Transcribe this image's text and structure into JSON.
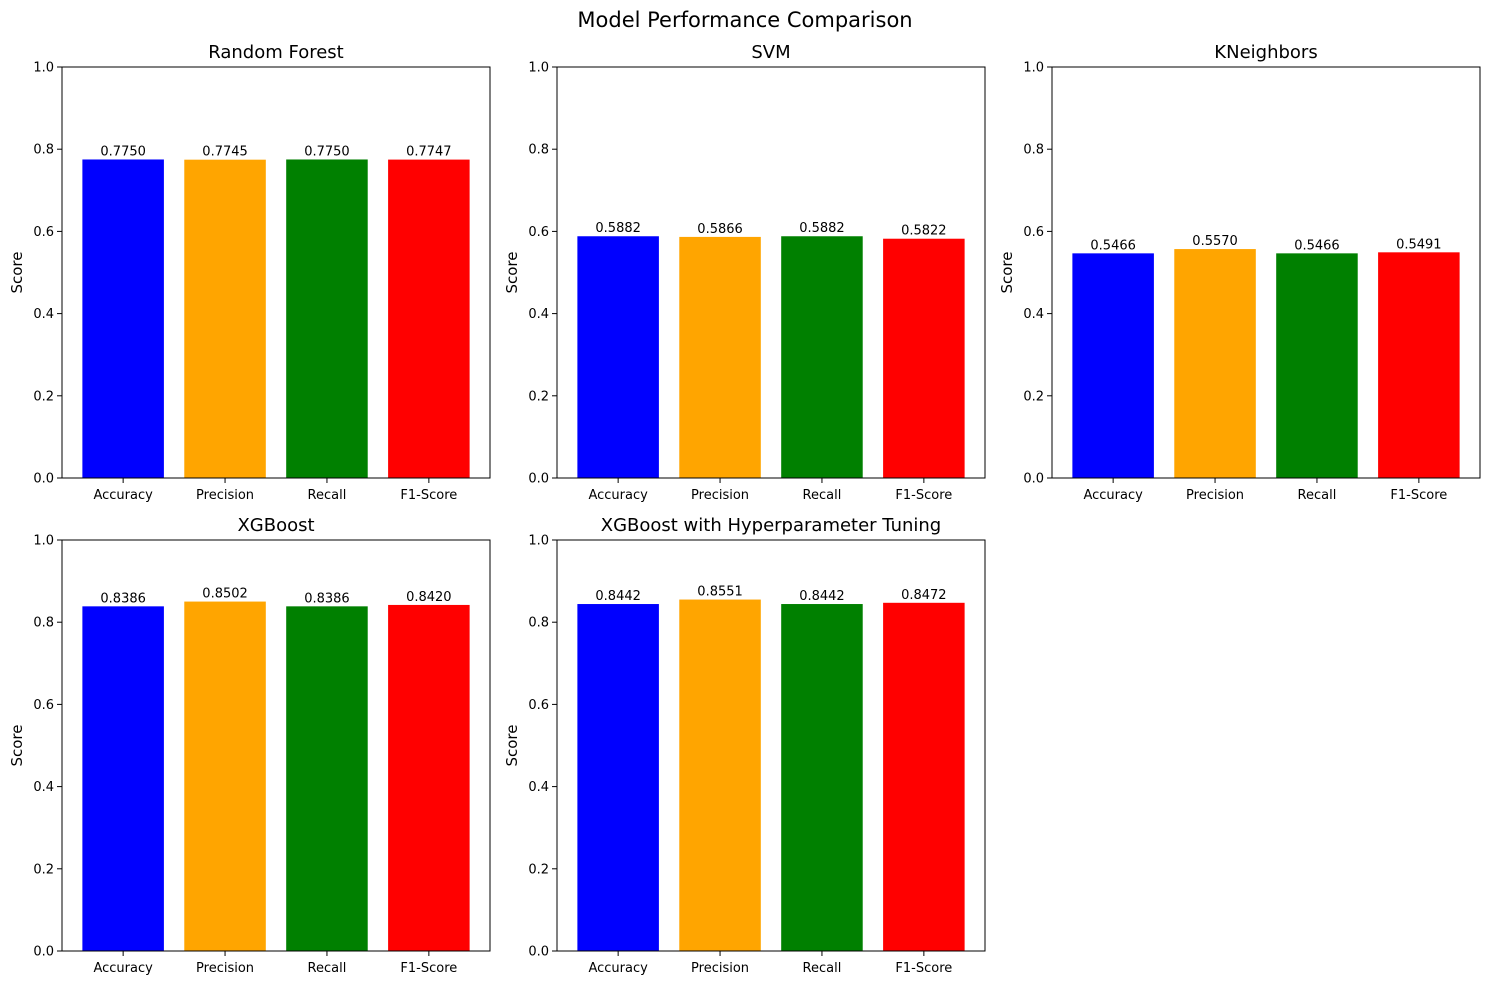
{
  "figure": {
    "title": "Model Performance Comparison"
  },
  "chart_data": [
    {
      "type": "bar",
      "title": "Random Forest",
      "xlabel": "",
      "ylabel": "Score",
      "ylim": [
        0,
        1
      ],
      "yticks": [
        "0.0",
        "0.2",
        "0.4",
        "0.6",
        "0.8",
        "1.0"
      ],
      "categories": [
        "Accuracy",
        "Precision",
        "Recall",
        "F1-Score"
      ],
      "values": [
        0.775,
        0.7745,
        0.775,
        0.7747
      ],
      "value_labels": [
        "0.7750",
        "0.7745",
        "0.7750",
        "0.7747"
      ],
      "colors": [
        "#0000ff",
        "#ffa500",
        "#008000",
        "#ff0000"
      ]
    },
    {
      "type": "bar",
      "title": "SVM",
      "xlabel": "",
      "ylabel": "Score",
      "ylim": [
        0,
        1
      ],
      "yticks": [
        "0.0",
        "0.2",
        "0.4",
        "0.6",
        "0.8",
        "1.0"
      ],
      "categories": [
        "Accuracy",
        "Precision",
        "Recall",
        "F1-Score"
      ],
      "values": [
        0.5882,
        0.5866,
        0.5882,
        0.5822
      ],
      "value_labels": [
        "0.5882",
        "0.5866",
        "0.5882",
        "0.5822"
      ],
      "colors": [
        "#0000ff",
        "#ffa500",
        "#008000",
        "#ff0000"
      ]
    },
    {
      "type": "bar",
      "title": "KNeighbors",
      "xlabel": "",
      "ylabel": "Score",
      "ylim": [
        0,
        1
      ],
      "yticks": [
        "0.0",
        "0.2",
        "0.4",
        "0.6",
        "0.8",
        "1.0"
      ],
      "categories": [
        "Accuracy",
        "Precision",
        "Recall",
        "F1-Score"
      ],
      "values": [
        0.5466,
        0.557,
        0.5466,
        0.5491
      ],
      "value_labels": [
        "0.5466",
        "0.5570",
        "0.5466",
        "0.5491"
      ],
      "colors": [
        "#0000ff",
        "#ffa500",
        "#008000",
        "#ff0000"
      ]
    },
    {
      "type": "bar",
      "title": "XGBoost",
      "xlabel": "",
      "ylabel": "Score",
      "ylim": [
        0,
        1
      ],
      "yticks": [
        "0.0",
        "0.2",
        "0.4",
        "0.6",
        "0.8",
        "1.0"
      ],
      "categories": [
        "Accuracy",
        "Precision",
        "Recall",
        "F1-Score"
      ],
      "values": [
        0.8386,
        0.8502,
        0.8386,
        0.842
      ],
      "value_labels": [
        "0.8386",
        "0.8502",
        "0.8386",
        "0.8420"
      ],
      "colors": [
        "#0000ff",
        "#ffa500",
        "#008000",
        "#ff0000"
      ]
    },
    {
      "type": "bar",
      "title": "XGBoost with Hyperparameter Tuning",
      "xlabel": "",
      "ylabel": "Score",
      "ylim": [
        0,
        1
      ],
      "yticks": [
        "0.0",
        "0.2",
        "0.4",
        "0.6",
        "0.8",
        "1.0"
      ],
      "categories": [
        "Accuracy",
        "Precision",
        "Recall",
        "F1-Score"
      ],
      "values": [
        0.8442,
        0.8551,
        0.8442,
        0.8472
      ],
      "value_labels": [
        "0.8442",
        "0.8551",
        "0.8442",
        "0.8472"
      ],
      "colors": [
        "#0000ff",
        "#ffa500",
        "#008000",
        "#ff0000"
      ]
    }
  ]
}
